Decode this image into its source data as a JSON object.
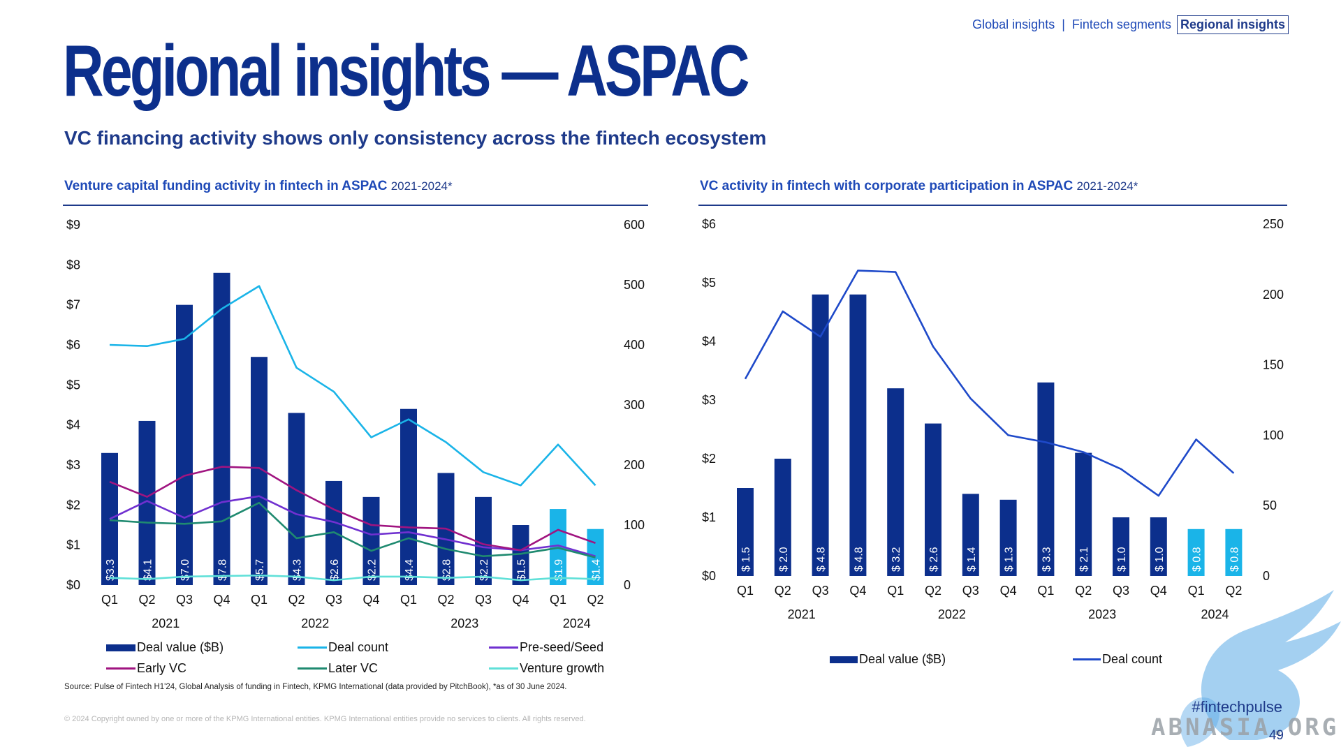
{
  "nav": {
    "items": [
      "Global insights",
      "Fintech segments",
      "Regional insights"
    ],
    "separator": "|"
  },
  "title": "Regional insights — ASPAC",
  "subtitle": "VC financing activity shows only consistency across the fintech ecosystem",
  "colors": {
    "deal_value": "#0c2f8c",
    "deal_value_highlight": "#1ab4e8",
    "deal_count_left": "#1ab4e8",
    "deal_count_right": "#1e49c9",
    "pre_seed": "#7030d0",
    "early_vc": "#a01480",
    "later_vc": "#1f8a70",
    "venture_growth": "#5fe0d8"
  },
  "chart_data": [
    {
      "type": "bar",
      "heading": "Venture capital funding activity in fintech in ASPAC",
      "heading_range": "2021-2024*",
      "quarters": [
        "Q1",
        "Q2",
        "Q3",
        "Q4",
        "Q1",
        "Q2",
        "Q3",
        "Q4",
        "Q1",
        "Q2",
        "Q3",
        "Q4",
        "Q1",
        "Q2"
      ],
      "years": [
        "2021",
        "2022",
        "2023",
        "2024"
      ],
      "y_left_ticks": [
        "$0",
        "$1",
        "$2",
        "$3",
        "$4",
        "$5",
        "$6",
        "$7",
        "$8",
        "$9"
      ],
      "y_left_range": [
        0,
        9
      ],
      "y_right_ticks": [
        "0",
        "100",
        "200",
        "300",
        "400",
        "500",
        "600"
      ],
      "y_right_range": [
        0,
        600
      ],
      "bars": {
        "name": "Deal value ($B)",
        "values": [
          3.3,
          4.1,
          7.0,
          7.8,
          5.7,
          4.3,
          2.6,
          2.2,
          4.4,
          2.8,
          2.2,
          1.5,
          1.9,
          1.4
        ],
        "labels": [
          "$3.3",
          "$4.1",
          "$7.0",
          "$7.8",
          "$5.7",
          "$4.3",
          "$2.6",
          "$2.2",
          "$4.4",
          "$2.8",
          "$2.2",
          "$1.5",
          "$1.9",
          "$1.4"
        ],
        "highlight_from_index": 12
      },
      "lines": [
        {
          "name": "Deal count",
          "color_key": "deal_count_left",
          "values": [
            400,
            398,
            410,
            460,
            498,
            362,
            322,
            246,
            276,
            238,
            188,
            166,
            234,
            166
          ]
        },
        {
          "name": "Pre-seed/Seed",
          "color_key": "pre_seed",
          "values": [
            110,
            140,
            112,
            138,
            148,
            118,
            105,
            84,
            88,
            76,
            63,
            58,
            66,
            48
          ]
        },
        {
          "name": "Early VC",
          "color_key": "early_vc",
          "values": [
            172,
            147,
            182,
            197,
            195,
            158,
            126,
            100,
            96,
            94,
            68,
            58,
            92,
            70
          ]
        },
        {
          "name": "Later VC",
          "color_key": "later_vc",
          "values": [
            108,
            104,
            102,
            106,
            137,
            78,
            88,
            57,
            78,
            60,
            48,
            52,
            62,
            46
          ]
        },
        {
          "name": "Venture growth",
          "color_key": "venture_growth",
          "values": [
            12,
            10,
            14,
            15,
            16,
            14,
            8,
            14,
            14,
            12,
            14,
            8,
            12,
            10
          ]
        }
      ],
      "legend": [
        "Deal value ($B)",
        "Deal count",
        "Pre-seed/Seed",
        "Early VC",
        "Later VC",
        "Venture growth"
      ]
    },
    {
      "type": "bar",
      "heading": "VC activity in fintech with corporate participation in ASPAC",
      "heading_range": "2021-2024*",
      "quarters": [
        "Q1",
        "Q2",
        "Q3",
        "Q4",
        "Q1",
        "Q2",
        "Q3",
        "Q4",
        "Q1",
        "Q2",
        "Q3",
        "Q4",
        "Q1",
        "Q2"
      ],
      "years": [
        "2021",
        "2022",
        "2023",
        "2024"
      ],
      "y_left_ticks": [
        "$0",
        "$1",
        "$2",
        "$3",
        "$4",
        "$5",
        "$6"
      ],
      "y_left_range": [
        0,
        6
      ],
      "y_right_ticks": [
        "0",
        "50",
        "100",
        "150",
        "200",
        "250"
      ],
      "y_right_range": [
        0,
        250
      ],
      "bars": {
        "name": "Deal value ($B)",
        "values": [
          1.5,
          2.0,
          4.8,
          4.8,
          3.2,
          2.6,
          1.4,
          1.3,
          3.3,
          2.1,
          1.0,
          1.0,
          0.8,
          0.8
        ],
        "labels": [
          "$ 1.5",
          "$ 2.0",
          "$ 4.8",
          "$ 4.8",
          "$ 3.2",
          "$ 2.6",
          "$ 1.4",
          "$ 1.3",
          "$ 3.3",
          "$ 2.1",
          "$ 1.0",
          "$ 1.0",
          "$ 0.8",
          "$ 0.8"
        ],
        "highlight_from_index": 12
      },
      "lines": [
        {
          "name": "Deal count",
          "color_key": "deal_count_right",
          "values": [
            140,
            188,
            170,
            217,
            216,
            163,
            126,
            100,
            95,
            88,
            76,
            57,
            97,
            73
          ]
        }
      ],
      "legend": [
        "Deal value ($B)",
        "Deal count"
      ]
    }
  ],
  "source": "Source: Pulse of Fintech H1'24, Global Analysis of funding in Fintech, KPMG International (data provided by PitchBook), *as of 30 June 2024.",
  "copyright": "© 2024 Copyright owned by one or more of the KPMG International entities. KPMG International entities provide no services to clients. All rights reserved.",
  "hashtag": "#fintechpulse",
  "page_number": "49",
  "watermark_text": "ABNASIA.ORG"
}
